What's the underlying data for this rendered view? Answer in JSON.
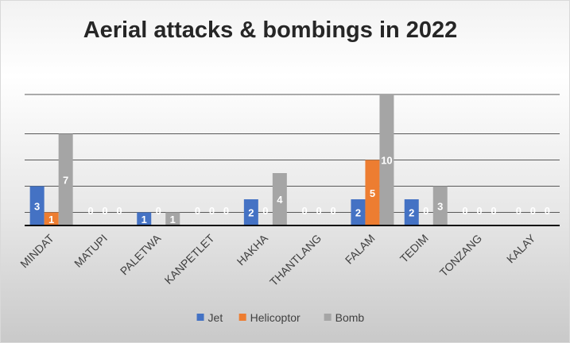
{
  "chart_data": {
    "type": "bar",
    "title": "Aerial attacks & bombings in 2022",
    "categories": [
      "MINDAT",
      "MATUPI",
      "PALETWA",
      "KANPETLET",
      "HAKHA",
      "THANTLANG",
      "FALAM",
      "TEDIM",
      "TONZANG",
      "KALAY"
    ],
    "series": [
      {
        "name": "Jet",
        "color": "#4472c4",
        "values": [
          3,
          0,
          1,
          0,
          2,
          0,
          2,
          2,
          0,
          0
        ]
      },
      {
        "name": "Helicoptor",
        "color": "#ed7d31",
        "values": [
          1,
          0,
          0,
          0,
          0,
          0,
          5,
          0,
          0,
          0
        ]
      },
      {
        "name": "Bomb",
        "color": "#a5a5a5",
        "values": [
          7,
          0,
          1,
          0,
          4,
          0,
          10,
          3,
          0,
          0
        ]
      }
    ],
    "ylim": [
      0,
      10
    ],
    "y_gridlines": [
      0,
      1,
      3,
      5,
      7,
      10
    ],
    "grid": true,
    "legend_position": "bottom",
    "data_labels": true
  }
}
